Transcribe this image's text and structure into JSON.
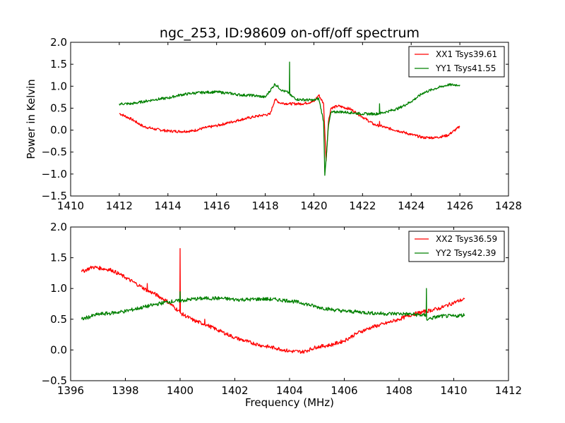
{
  "title": "ngc_253, ID:98609 on-off/off spectrum",
  "ylabel": "Power in Kelvin",
  "xlabel": "Frequency (MHz)",
  "colors": {
    "xx": "#ff0000",
    "yy": "#008000"
  },
  "chart_data": [
    {
      "type": "line",
      "xlim": [
        1410,
        1428
      ],
      "ylim": [
        -1.5,
        2.0
      ],
      "xticks": [
        1410,
        1412,
        1414,
        1416,
        1418,
        1420,
        1422,
        1424,
        1426,
        1428
      ],
      "yticks": [
        -1.5,
        -1.0,
        -0.5,
        0.0,
        0.5,
        1.0,
        1.5,
        2.0
      ],
      "legend_position": "top-right",
      "series": [
        {
          "name": "XX1 Tsys39.61",
          "color": "#ff0000",
          "x": [
            1412,
            1412.5,
            1413,
            1413.5,
            1414,
            1414.5,
            1415,
            1415.5,
            1416,
            1416.5,
            1417,
            1417.5,
            1418,
            1418.2,
            1418.4,
            1418.6,
            1419,
            1419.5,
            1420,
            1420.2,
            1420.4,
            1420.5,
            1420.6,
            1420.7,
            1421,
            1421.5,
            1422,
            1422.5,
            1422.69,
            1422.7,
            1422.71,
            1423,
            1423.5,
            1424,
            1424.5,
            1425,
            1425.5,
            1426
          ],
          "y": [
            0.38,
            0.25,
            0.08,
            0.02,
            -0.02,
            -0.03,
            -0.02,
            0.05,
            0.1,
            0.17,
            0.24,
            0.3,
            0.35,
            0.36,
            0.7,
            0.62,
            0.6,
            0.6,
            0.65,
            0.8,
            0.6,
            -0.7,
            0.2,
            0.5,
            0.55,
            0.48,
            0.3,
            0.12,
            0.1,
            0.2,
            0.1,
            0.05,
            -0.02,
            -0.1,
            -0.17,
            -0.17,
            -0.12,
            0.08
          ]
        },
        {
          "name": "YY1 Tsys41.55",
          "color": "#008000",
          "x": [
            1412,
            1412.5,
            1413,
            1413.5,
            1414,
            1414.5,
            1415,
            1415.5,
            1416,
            1416.5,
            1417,
            1417.5,
            1418,
            1418.4,
            1418.7,
            1418.99,
            1419,
            1419.01,
            1419.3,
            1420,
            1420.2,
            1420.4,
            1420.45,
            1420.6,
            1420.7,
            1421,
            1421.5,
            1422,
            1422.5,
            1422.69,
            1422.7,
            1422.71,
            1423,
            1423.5,
            1424,
            1424.5,
            1425,
            1425.5,
            1426
          ],
          "y": [
            0.6,
            0.6,
            0.65,
            0.7,
            0.73,
            0.8,
            0.84,
            0.86,
            0.87,
            0.84,
            0.8,
            0.79,
            0.75,
            1.05,
            0.9,
            0.85,
            1.55,
            0.8,
            0.7,
            0.68,
            0.72,
            0.2,
            -1.03,
            0.1,
            0.4,
            0.42,
            0.4,
            0.37,
            0.37,
            0.38,
            0.6,
            0.38,
            0.42,
            0.5,
            0.65,
            0.85,
            0.95,
            1.03,
            1.03
          ]
        }
      ]
    },
    {
      "type": "line",
      "xlim": [
        1396,
        1412
      ],
      "ylim": [
        -0.5,
        2.0
      ],
      "xticks": [
        1396,
        1398,
        1400,
        1402,
        1404,
        1406,
        1408,
        1410,
        1412
      ],
      "yticks": [
        -0.5,
        0.0,
        0.5,
        1.0,
        1.5,
        2.0
      ],
      "legend_position": "top-right",
      "series": [
        {
          "name": "XX2 Tsys36.59",
          "color": "#ff0000",
          "x": [
            1396.4,
            1396.8,
            1397.5,
            1398,
            1398.5,
            1398.79,
            1398.8,
            1398.81,
            1399,
            1399.5,
            1399.99,
            1400,
            1400.01,
            1400.5,
            1400.89,
            1400.9,
            1400.91,
            1401,
            1401.5,
            1402,
            1402.5,
            1403,
            1403.5,
            1404,
            1404.5,
            1405,
            1405.5,
            1406,
            1406.5,
            1407,
            1407.5,
            1408,
            1408.5,
            1409,
            1409.5,
            1410,
            1410.4
          ],
          "y": [
            1.27,
            1.35,
            1.3,
            1.18,
            1.05,
            0.97,
            1.08,
            0.96,
            0.93,
            0.8,
            0.62,
            1.65,
            0.6,
            0.48,
            0.42,
            0.5,
            0.42,
            0.4,
            0.3,
            0.2,
            0.13,
            0.07,
            0.03,
            -0.02,
            -0.03,
            0.05,
            0.08,
            0.15,
            0.28,
            0.37,
            0.43,
            0.5,
            0.58,
            0.63,
            0.68,
            0.77,
            0.83
          ]
        },
        {
          "name": "YY2 Tsys42.39",
          "color": "#008000",
          "x": [
            1396.4,
            1397,
            1397.5,
            1398,
            1398.5,
            1399,
            1399.5,
            1399.99,
            1400,
            1400.01,
            1400.5,
            1401,
            1401.5,
            1402,
            1402.5,
            1403,
            1403.5,
            1404,
            1404.5,
            1405,
            1405.5,
            1406,
            1406.5,
            1407,
            1407.5,
            1408,
            1408.5,
            1408.99,
            1409,
            1409.01,
            1409.5,
            1410,
            1410.4
          ],
          "y": [
            0.5,
            0.58,
            0.6,
            0.63,
            0.68,
            0.73,
            0.78,
            0.8,
            0.95,
            0.8,
            0.83,
            0.84,
            0.84,
            0.82,
            0.82,
            0.83,
            0.82,
            0.8,
            0.76,
            0.7,
            0.66,
            0.63,
            0.62,
            0.6,
            0.59,
            0.59,
            0.58,
            0.56,
            1.0,
            0.5,
            0.55,
            0.55,
            0.57
          ]
        }
      ]
    }
  ]
}
